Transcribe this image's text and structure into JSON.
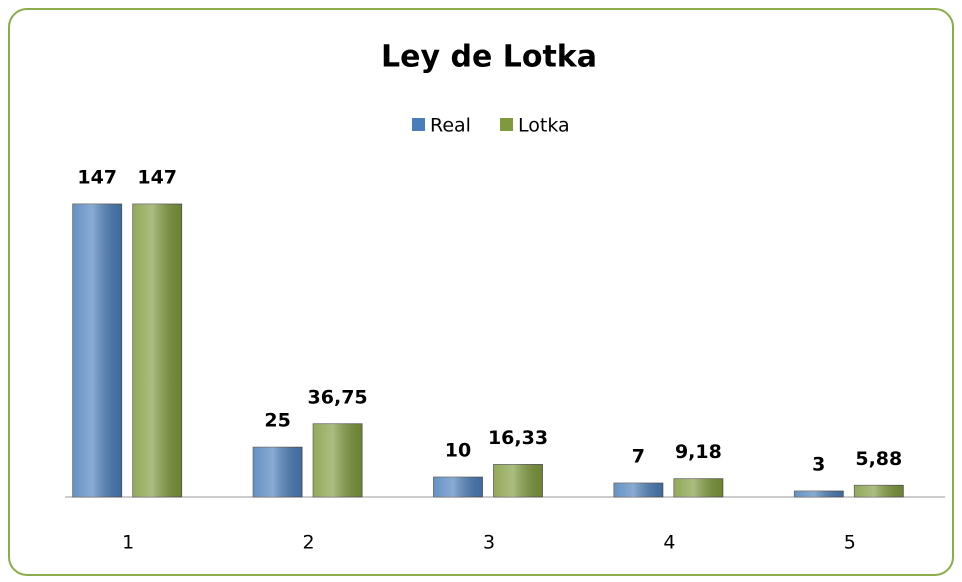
{
  "chart_data": {
    "type": "bar",
    "title": "Ley de Lotka",
    "categories": [
      "1",
      "2",
      "3",
      "4",
      "5"
    ],
    "series": [
      {
        "name": "Real",
        "color": "#4a7ebb",
        "values": [
          147,
          25,
          10,
          7,
          3
        ]
      },
      {
        "name": "Lotka",
        "color": "#7f9a3c",
        "values": [
          147,
          36.75,
          16.33,
          9.18,
          5.88
        ],
        "value_labels": [
          "147",
          "36,75",
          "16,33",
          "9,18",
          "5,88"
        ]
      }
    ],
    "legend": "top"
  }
}
